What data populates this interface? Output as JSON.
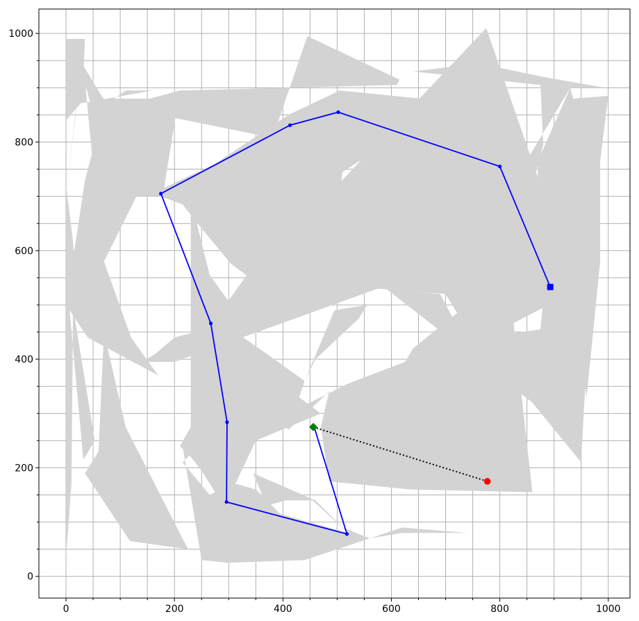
{
  "chart_data": {
    "type": "line",
    "title": "",
    "xlabel": "",
    "ylabel": "",
    "xlim": [
      -50,
      1040
    ],
    "ylim": [
      -40,
      1045
    ],
    "grid": true,
    "x_ticks": [
      0,
      200,
      400,
      600,
      800,
      1000
    ],
    "y_ticks": [
      0,
      200,
      400,
      600,
      800,
      1000
    ],
    "x_minor_grid": [
      50,
      100,
      150,
      250,
      300,
      350,
      450,
      500,
      550,
      650,
      700,
      750,
      850,
      900,
      950
    ],
    "y_minor_grid": [
      50,
      100,
      150,
      250,
      300,
      350,
      450,
      500,
      550,
      650,
      700,
      750,
      850,
      900,
      950
    ],
    "obstacles_color": "#d3d3d3",
    "obstacles": [
      [
        [
          0,
          35
        ],
        [
          10,
          170
        ],
        [
          13,
          495
        ],
        [
          53,
          250
        ],
        [
          32,
          215
        ],
        [
          0,
          560
        ],
        [
          0,
          840
        ],
        [
          30,
          875
        ],
        [
          35,
          990
        ],
        [
          0,
          990
        ]
      ],
      [
        [
          0,
          720
        ],
        [
          12,
          625
        ],
        [
          20,
          535
        ],
        [
          60,
          505
        ],
        [
          0,
          490
        ]
      ],
      [
        [
          0,
          700
        ],
        [
          30,
          965
        ],
        [
          60,
          650
        ],
        [
          75,
          730
        ],
        [
          80,
          850
        ],
        [
          75,
          870
        ],
        [
          110,
          895
        ],
        [
          160,
          895
        ],
        [
          20,
          870
        ]
      ],
      [
        [
          20,
          960
        ],
        [
          75,
          870
        ],
        [
          370,
          810
        ],
        [
          375,
          790
        ],
        [
          445,
          995
        ],
        [
          615,
          915
        ],
        [
          610,
          905
        ],
        [
          210,
          895
        ],
        [
          135,
          700
        ],
        [
          95,
          700
        ],
        [
          70,
          760
        ],
        [
          60,
          820
        ]
      ],
      [
        [
          35,
          730
        ],
        [
          75,
          880
        ],
        [
          155,
          880
        ],
        [
          130,
          700
        ],
        [
          70,
          580
        ],
        [
          120,
          440
        ],
        [
          170,
          370
        ],
        [
          40,
          440
        ],
        [
          0,
          500
        ]
      ],
      [
        [
          70,
          860
        ],
        [
          155,
          880
        ],
        [
          210,
          895
        ],
        [
          180,
          710
        ],
        [
          130,
          700
        ],
        [
          95,
          700
        ]
      ],
      [
        [
          35,
          190
        ],
        [
          60,
          230
        ],
        [
          70,
          450
        ],
        [
          110,
          275
        ],
        [
          225,
          50
        ],
        [
          118,
          65
        ]
      ],
      [
        [
          130,
          700
        ],
        [
          180,
          715
        ],
        [
          275,
          760
        ],
        [
          410,
          850
        ],
        [
          505,
          895
        ],
        [
          655,
          880
        ],
        [
          705,
          820
        ],
        [
          675,
          830
        ],
        [
          620,
          815
        ],
        [
          510,
          745
        ],
        [
          505,
          710
        ],
        [
          550,
          725
        ],
        [
          600,
          760
        ],
        [
          720,
          715
        ],
        [
          615,
          665
        ],
        [
          425,
          640
        ],
        [
          400,
          505
        ],
        [
          305,
          575
        ],
        [
          255,
          635
        ],
        [
          215,
          685
        ],
        [
          175,
          700
        ]
      ],
      [
        [
          410,
          840
        ],
        [
          505,
          895
        ],
        [
          650,
          880
        ],
        [
          695,
          820
        ],
        [
          765,
          765
        ],
        [
          800,
          755
        ],
        [
          760,
          765
        ],
        [
          600,
          810
        ],
        [
          500,
          850
        ]
      ],
      [
        [
          230,
          695
        ],
        [
          265,
          555
        ],
        [
          305,
          500
        ],
        [
          320,
          445
        ],
        [
          370,
          410
        ],
        [
          440,
          360
        ],
        [
          460,
          400
        ],
        [
          540,
          475
        ],
        [
          555,
          500
        ],
        [
          495,
          490
        ],
        [
          440,
          360
        ],
        [
          430,
          330
        ],
        [
          470,
          300
        ],
        [
          350,
          250
        ],
        [
          305,
          155
        ],
        [
          275,
          155
        ],
        [
          250,
          195
        ],
        [
          230,
          220
        ],
        [
          210,
          240
        ],
        [
          230,
          275
        ]
      ],
      [
        [
          575,
          530
        ],
        [
          700,
          520
        ],
        [
          755,
          430
        ],
        [
          880,
          495
        ],
        [
          895,
          460
        ],
        [
          880,
          620
        ],
        [
          870,
          735
        ],
        [
          775,
          1010
        ],
        [
          500,
          720
        ],
        [
          390,
          635
        ],
        [
          280,
          480
        ],
        [
          240,
          450
        ],
        [
          200,
          440
        ],
        [
          165,
          410
        ],
        [
          140,
          395
        ],
        [
          200,
          395
        ]
      ],
      [
        [
          390,
          295
        ],
        [
          450,
          320
        ],
        [
          520,
          355
        ],
        [
          625,
          395
        ],
        [
          640,
          420
        ],
        [
          815,
          560
        ],
        [
          860,
          155
        ],
        [
          635,
          160
        ],
        [
          485,
          175
        ],
        [
          470,
          275
        ],
        [
          485,
          340
        ],
        [
          410,
          270
        ]
      ],
      [
        [
          215,
          210
        ],
        [
          250,
          245
        ],
        [
          298,
          282
        ],
        [
          255,
          260
        ],
        [
          230,
          255
        ],
        [
          215,
          240
        ],
        [
          250,
          30
        ],
        [
          300,
          25
        ],
        [
          440,
          30
        ],
        [
          530,
          60
        ],
        [
          620,
          90
        ],
        [
          740,
          80
        ],
        [
          620,
          80
        ],
        [
          560,
          70
        ],
        [
          510,
          90
        ],
        [
          460,
          140
        ],
        [
          345,
          190
        ],
        [
          370,
          130
        ],
        [
          405,
          140
        ],
        [
          455,
          140
        ],
        [
          520,
          80
        ],
        [
          395,
          115
        ],
        [
          350,
          160
        ],
        [
          315,
          170
        ],
        [
          295,
          165
        ],
        [
          265,
          150
        ]
      ],
      [
        [
          640,
          930
        ],
        [
          760,
          945
        ],
        [
          880,
          920
        ],
        [
          995,
          900
        ],
        [
          930,
          900
        ],
        [
          870,
          800
        ],
        [
          840,
          750
        ],
        [
          810,
          735
        ],
        [
          750,
          700
        ],
        [
          780,
          605
        ],
        [
          855,
          700
        ],
        [
          880,
          795
        ],
        [
          875,
          905
        ]
      ],
      [
        [
          870,
          765
        ],
        [
          930,
          900
        ],
        [
          935,
          880
        ],
        [
          1000,
          885
        ],
        [
          985,
          765
        ],
        [
          985,
          580
        ],
        [
          960,
          330
        ],
        [
          925,
          540
        ],
        [
          885,
          600
        ],
        [
          860,
          520
        ],
        [
          870,
          620
        ]
      ],
      [
        [
          590,
          530
        ],
        [
          690,
          520
        ],
        [
          735,
          435
        ],
        [
          875,
          455
        ],
        [
          885,
          560
        ],
        [
          880,
          610
        ],
        [
          920,
          580
        ],
        [
          975,
          880
        ],
        [
          985,
          880
        ],
        [
          950,
          210
        ],
        [
          860,
          320
        ]
      ]
    ],
    "series": [
      {
        "role": "path",
        "color": "#0000ff",
        "line_style": "solid",
        "x": [
          893,
          800,
          502,
          413,
          175,
          267,
          297,
          296,
          518,
          458
        ],
        "y": [
          533,
          755,
          855,
          831,
          705,
          466,
          284,
          137,
          78,
          274
        ]
      },
      {
        "role": "straight-line",
        "color": "#000000",
        "line_style": "dotted",
        "x": [
          456,
          777
        ],
        "y": [
          275,
          175
        ]
      }
    ],
    "markers": [
      {
        "role": "start",
        "shape": "square",
        "color": "#0000ff",
        "x": 893,
        "y": 533
      },
      {
        "role": "diamond",
        "shape": "diamond",
        "color": "#008000",
        "x": 456,
        "y": 275
      },
      {
        "role": "goal",
        "shape": "circle",
        "color": "#ff0000",
        "x": 777,
        "y": 175
      }
    ]
  }
}
